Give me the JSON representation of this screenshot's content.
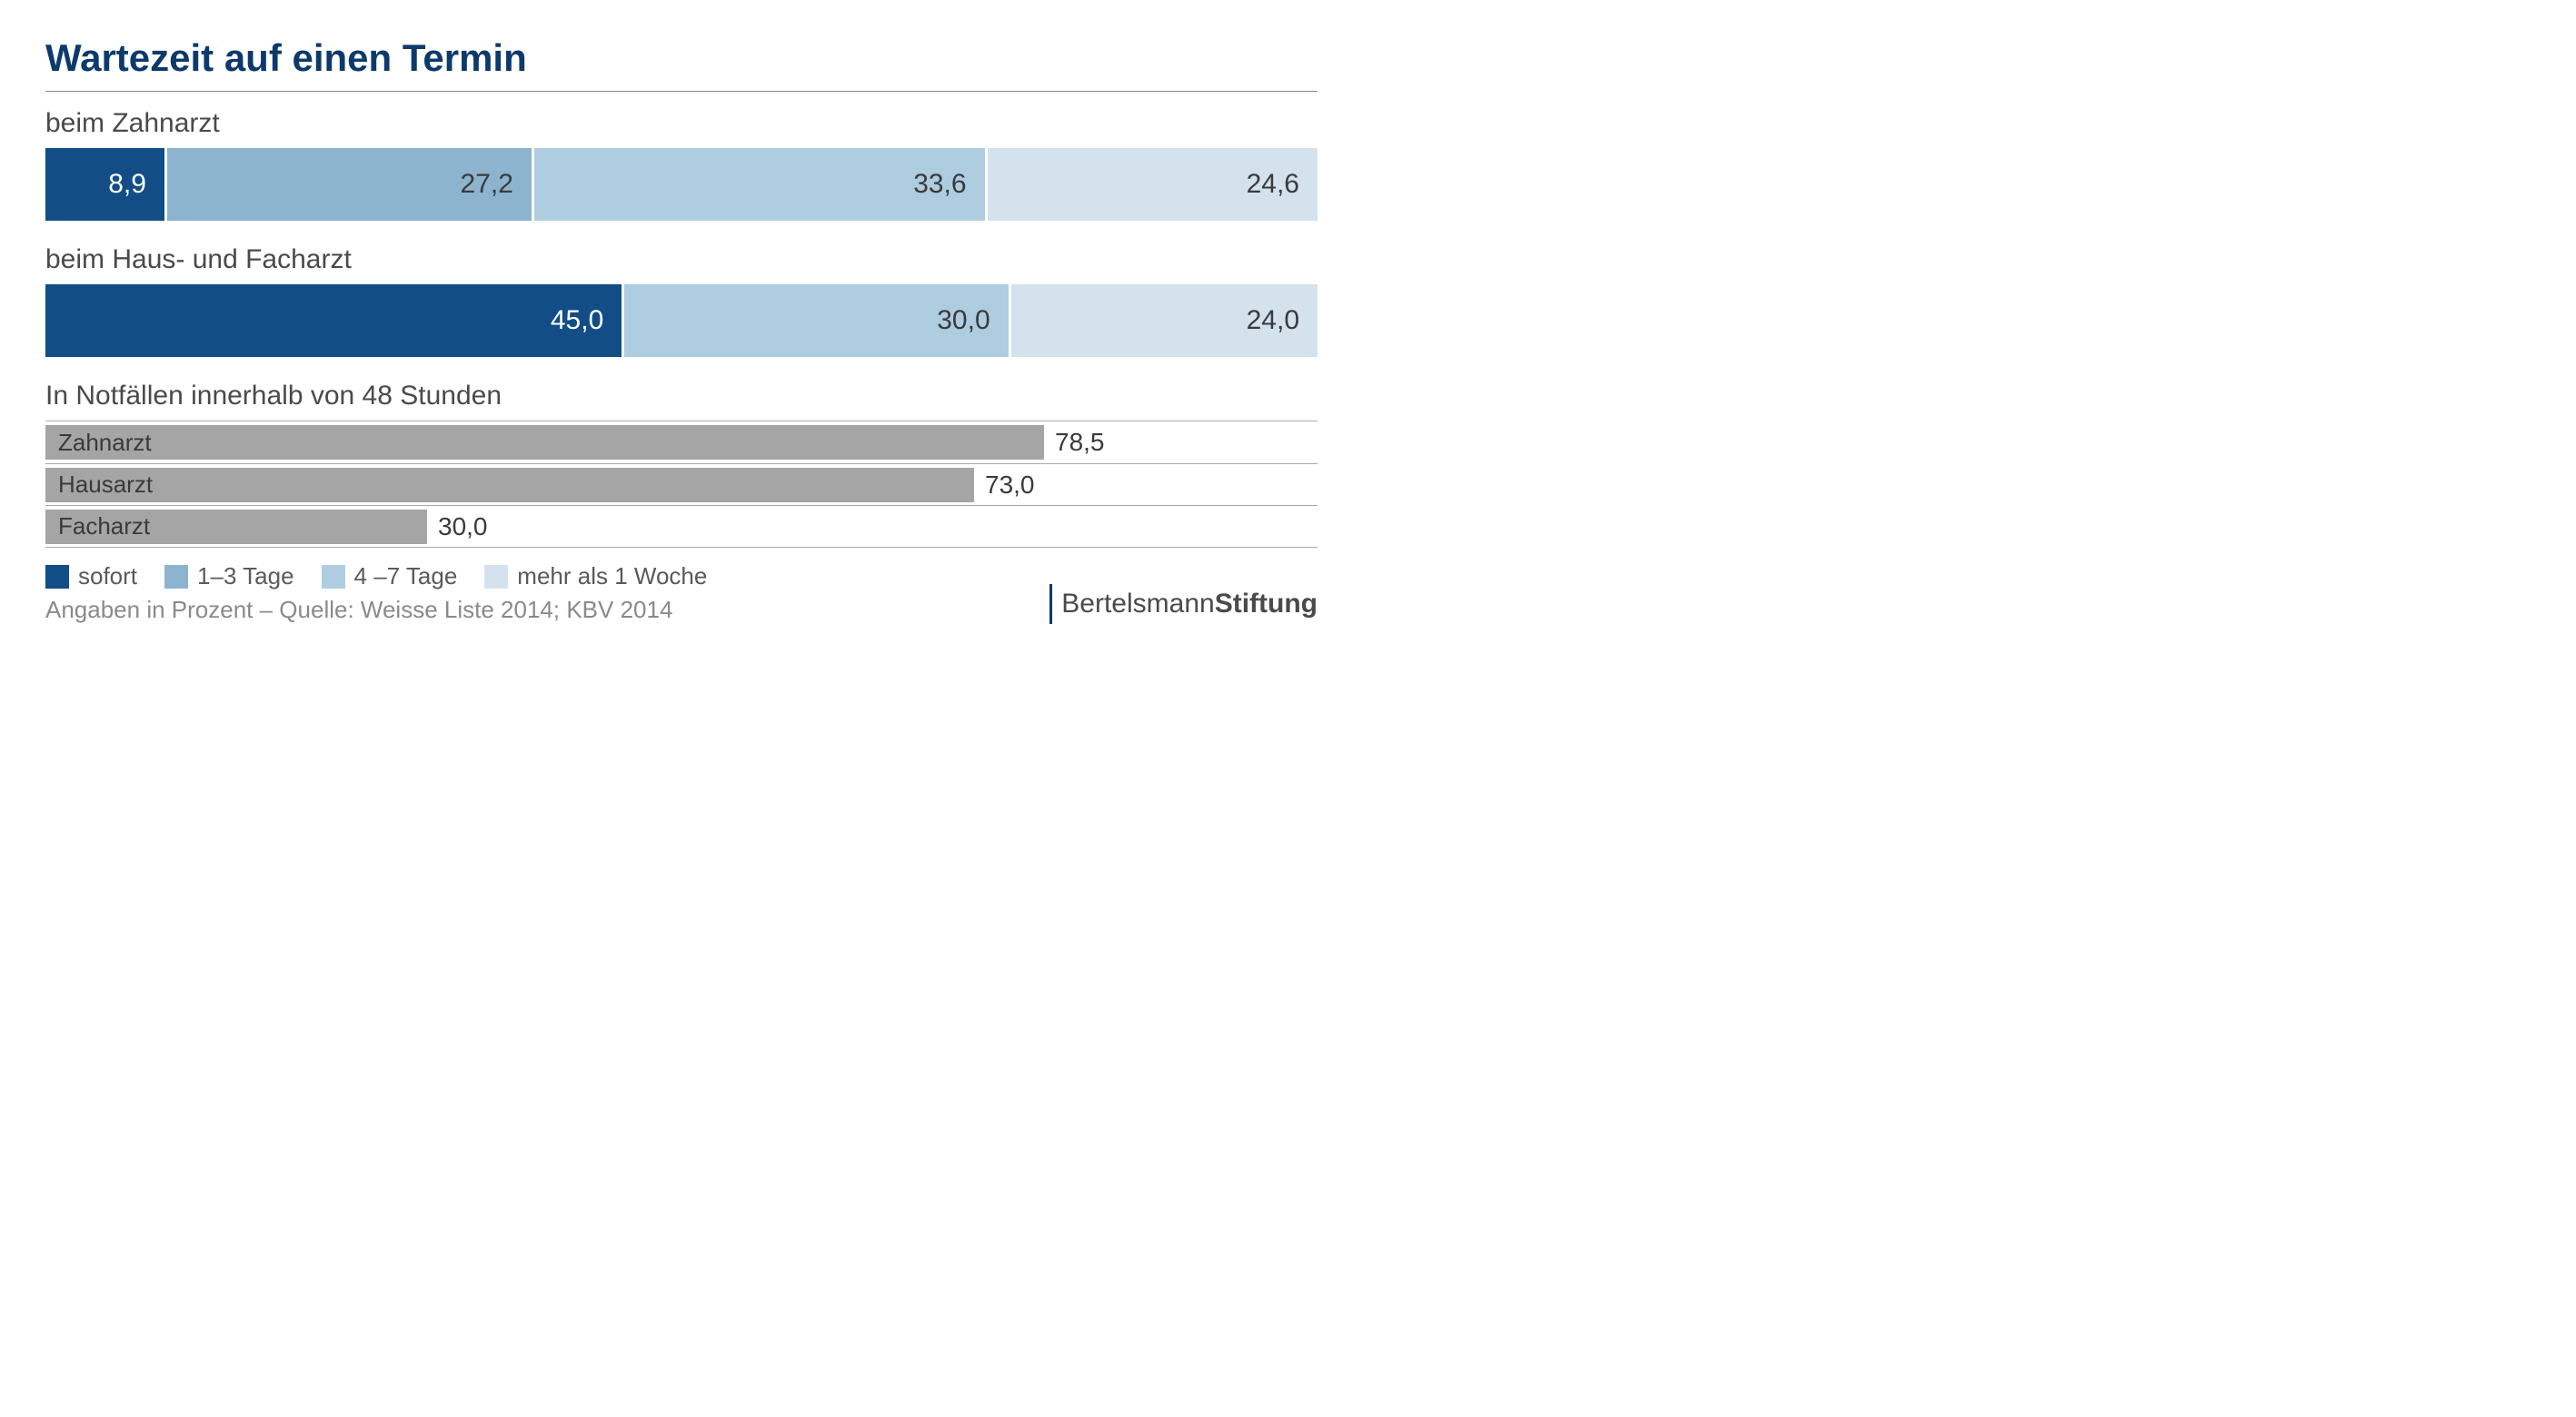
{
  "title": "Wartezeit auf einen Termin",
  "colors": {
    "sofort": "#124d86",
    "tage1_3": "#8cb4cf",
    "tage4_7": "#aecde0",
    "mehr1woche": "#d3e2ed",
    "gray_bar": "#a5a5a5",
    "title": "#0d3a6b",
    "text": "#4a4a4a",
    "background": "#ffffff"
  },
  "stacked": [
    {
      "label": "beim Zahnarzt",
      "total_width_pct": 100,
      "segments": [
        {
          "value": "8,9",
          "width": 9.4,
          "color_key": "sofort",
          "text_light": true
        },
        {
          "value": "27,2",
          "width": 28.8,
          "color_key": "tage1_3",
          "text_light": false
        },
        {
          "value": "33,6",
          "width": 35.6,
          "color_key": "tage4_7",
          "text_light": false
        },
        {
          "value": "24,6",
          "width": 26.1,
          "color_key": "mehr1woche",
          "text_light": false
        }
      ]
    },
    {
      "label": "beim Haus- und Facharzt",
      "total_width_pct": 100,
      "segments": [
        {
          "value": "45,0",
          "width": 45.5,
          "color_key": "sofort",
          "text_light": true
        },
        {
          "value": "30,0",
          "width": 30.3,
          "color_key": "tage4_7",
          "text_light": false
        },
        {
          "value": "24,0",
          "width": 24.2,
          "color_key": "mehr1woche",
          "text_light": false
        }
      ]
    }
  ],
  "gray_section": {
    "heading": "In Notfällen innerhalb von 48 Stunden",
    "max_scale": 100,
    "bars": [
      {
        "label": "Zahnarzt",
        "value": "78,5",
        "width_pct": 78.5
      },
      {
        "label": "Hausarzt",
        "value": "73,0",
        "width_pct": 73.0
      },
      {
        "label": "Facharzt",
        "value": "30,0",
        "width_pct": 30.0
      }
    ]
  },
  "legend": [
    {
      "label": "sofort",
      "color_key": "sofort"
    },
    {
      "label": "1–3 Tage",
      "color_key": "tage1_3"
    },
    {
      "label": "4 –7 Tage",
      "color_key": "tage4_7"
    },
    {
      "label": "mehr als 1 Woche",
      "color_key": "mehr1woche"
    }
  ],
  "source": "Angaben in Prozent – Quelle: Weisse Liste 2014; KBV 2014",
  "brand": {
    "light": "Bertelsmann",
    "bold": "Stiftung"
  }
}
